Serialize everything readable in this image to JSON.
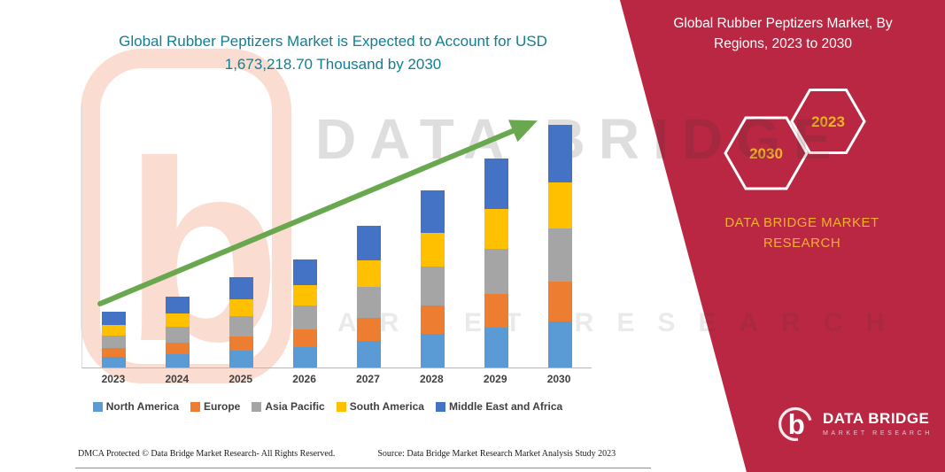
{
  "header": {
    "chart_title": "Global Rubber Peptizers Market is Expected to Account for USD 1,673,218.70 Thousand by 2030",
    "title_color": "#0e7f95"
  },
  "chart_data": {
    "type": "bar",
    "stacked": true,
    "title": "Global Rubber Peptizers Market is Expected to Account for USD 1,673,218.70 Thousand by 2030",
    "xlabel": "",
    "ylabel": "",
    "ylim": [
      0,
      300
    ],
    "grid": false,
    "legend_position": "bottom",
    "categories": [
      "2023",
      "2024",
      "2025",
      "2026",
      "2027",
      "2028",
      "2029",
      "2030"
    ],
    "series": [
      {
        "name": "North America",
        "color": "#5B9BD5",
        "values": [
          12,
          15,
          19,
          23,
          30,
          38,
          45,
          53
        ]
      },
      {
        "name": "Europe",
        "color": "#ED7D31",
        "values": [
          10,
          13,
          16,
          20,
          26,
          32,
          38,
          45
        ]
      },
      {
        "name": "Asia Pacific",
        "color": "#A5A5A5",
        "values": [
          14,
          18,
          23,
          27,
          35,
          44,
          52,
          61
        ]
      },
      {
        "name": "South America",
        "color": "#FFC000",
        "values": [
          12,
          15,
          19,
          23,
          30,
          38,
          45,
          53
        ]
      },
      {
        "name": "Middle East and Africa",
        "color": "#4472C4",
        "values": [
          15,
          19,
          25,
          29,
          39,
          48,
          58,
          66
        ]
      }
    ],
    "trend_line_color": "#6aa84f"
  },
  "red_panel": {
    "title": "Global Rubber Peptizers Market, By Regions, 2023 to 2030",
    "hexagon_left_year": "2030",
    "hexagon_right_year": "2023",
    "brand_text": "DATA BRIDGE MARKET RESEARCH",
    "background_color": "#b92743",
    "accent_gold": "#f3b229"
  },
  "watermark": {
    "line1": "DATA BRIDGE",
    "line2": "MARKET RESEARCH",
    "logo_letter": "b"
  },
  "logo": {
    "name": "DATA BRIDGE",
    "subtitle": "MARKET RESEARCH",
    "letter": "b"
  },
  "footer": {
    "dmca": "DMCA Protected © Data Bridge Market Research-  All Rights Reserved.",
    "source": "Source: Data Bridge Market Research  Market Analysis Study 2023"
  }
}
